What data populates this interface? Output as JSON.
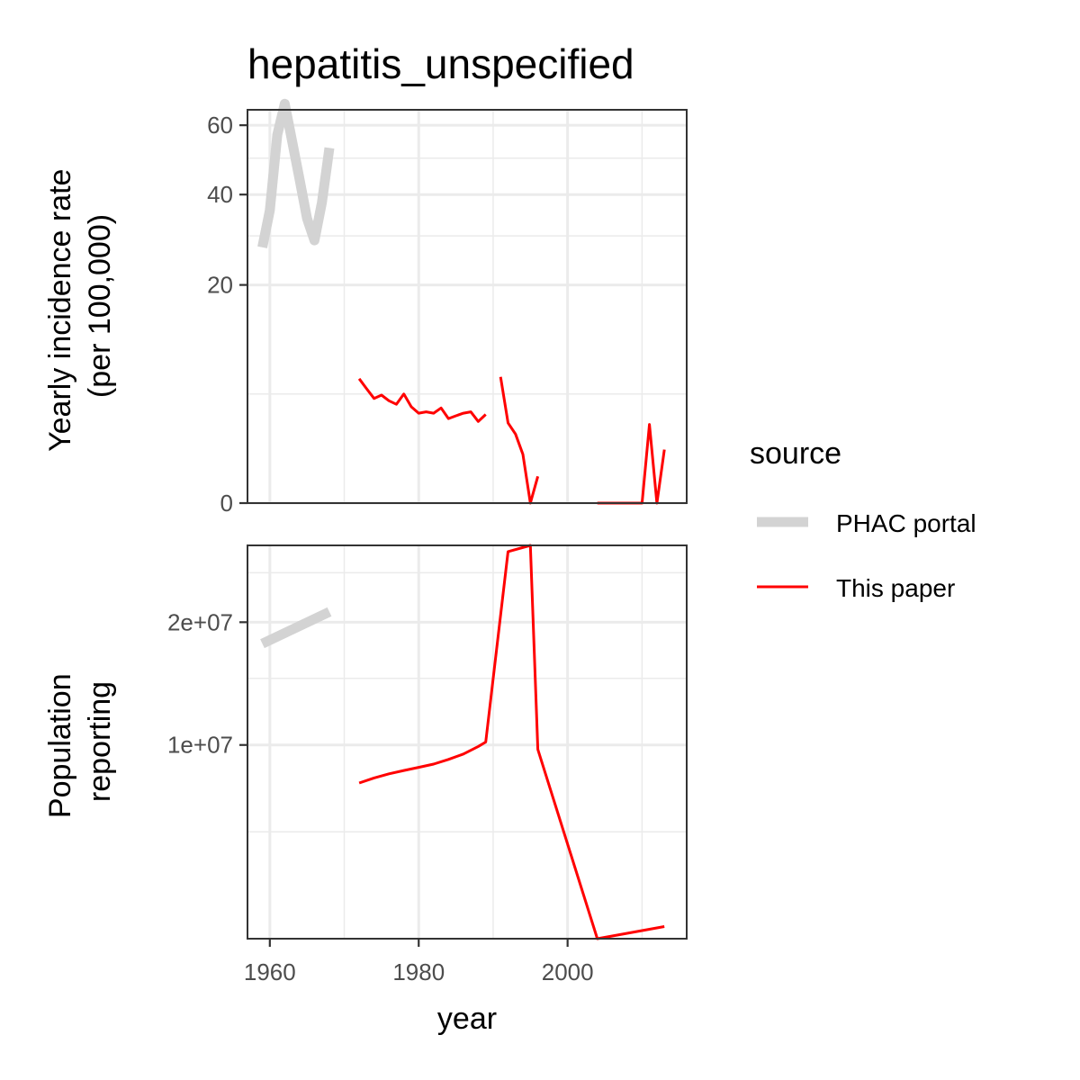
{
  "chart_data": {
    "type": "line",
    "title": "hepatitis_unspecified",
    "xlabel": "year",
    "xlim": [
      1957,
      2016
    ],
    "x_ticks": [
      1960,
      1980,
      2000
    ],
    "x_tick_labels": [
      "1960",
      "1980",
      "2000"
    ],
    "legend": {
      "title": "source",
      "position": "right",
      "entries": [
        {
          "label": "PHAC portal",
          "color": "#d3d3d3"
        },
        {
          "label": "This paper",
          "color": "#ff0000"
        }
      ]
    },
    "panels": [
      {
        "id": "incidence",
        "ylabel_lines": [
          "Yearly incidence rate",
          "(per 100,000)"
        ],
        "scale": "sqrt",
        "ylim": [
          0,
          65
        ],
        "y_ticks": [
          0,
          20,
          40,
          60
        ],
        "y_tick_labels": [
          "0",
          "20",
          "40",
          "60"
        ],
        "y_minor": [
          5,
          30,
          50
        ],
        "series": [
          {
            "source": "PHAC portal",
            "segments": [
              [
                [
                  1959,
                  27.5
                ],
                [
                  1960,
                  36
                ],
                [
                  1961,
                  57
                ],
                [
                  1962,
                  67
                ],
                [
                  1963,
                  55
                ],
                [
                  1964,
                  44
                ],
                [
                  1965,
                  34
                ],
                [
                  1966,
                  29
                ],
                [
                  1967,
                  38
                ],
                [
                  1968,
                  53
                ]
              ]
            ]
          },
          {
            "source": "This paper",
            "segments": [
              [
                [
                  1972,
                  6.5
                ],
                [
                  1973,
                  5.5
                ],
                [
                  1974,
                  4.6
                ],
                [
                  1975,
                  4.9
                ],
                [
                  1976,
                  4.4
                ],
                [
                  1977,
                  4.1
                ],
                [
                  1978,
                  5.0
                ],
                [
                  1979,
                  3.9
                ],
                [
                  1980,
                  3.4
                ],
                [
                  1981,
                  3.5
                ],
                [
                  1982,
                  3.4
                ],
                [
                  1983,
                  3.8
                ],
                [
                  1984,
                  3.0
                ],
                [
                  1985,
                  3.2
                ],
                [
                  1986,
                  3.4
                ],
                [
                  1987,
                  3.5
                ],
                [
                  1988,
                  2.8
                ],
                [
                  1989,
                  3.3
                ]
              ],
              [
                [
                  1991,
                  6.7
                ],
                [
                  1992,
                  2.7
                ],
                [
                  1993,
                  2.0
                ],
                [
                  1994,
                  1.0
                ],
                [
                  1995,
                  0.0
                ],
                [
                  1996,
                  0.3
                ]
              ],
              [
                [
                  2004,
                  0.0
                ],
                [
                  2010,
                  0.0
                ],
                [
                  2011,
                  2.6
                ],
                [
                  2012,
                  0.0
                ],
                [
                  2013,
                  1.2
                ]
              ]
            ]
          }
        ]
      },
      {
        "id": "population",
        "ylabel_lines": [
          "Population",
          "reporting"
        ],
        "scale": "sqrt",
        "ylim": [
          1200000,
          28000000
        ],
        "y_ticks": [
          10000000,
          20000000
        ],
        "y_tick_labels": [
          "1e+07",
          "2e+07"
        ],
        "y_minor": [
          5000000,
          15000000,
          25000000
        ],
        "series": [
          {
            "source": "PHAC portal",
            "segments": [
              [
                [
                  1959,
                  18000000
                ],
                [
                  1968,
                  21000000
                ]
              ]
            ]
          },
          {
            "source": "This paper",
            "segments": [
              [
                [
                  1972,
                  7600000
                ],
                [
                  1974,
                  7900000
                ],
                [
                  1976,
                  8150000
                ],
                [
                  1978,
                  8350000
                ],
                [
                  1980,
                  8550000
                ],
                [
                  1982,
                  8750000
                ],
                [
                  1984,
                  9050000
                ],
                [
                  1986,
                  9400000
                ],
                [
                  1988,
                  9900000
                ],
                [
                  1989,
                  10200000
                ],
                [
                  1992,
                  27300000
                ],
                [
                  1995,
                  28000000
                ],
                [
                  1996,
                  9700000
                ],
                [
                  2004,
                  1200000
                ],
                [
                  2013,
                  1500000
                ]
              ]
            ]
          }
        ]
      }
    ]
  }
}
